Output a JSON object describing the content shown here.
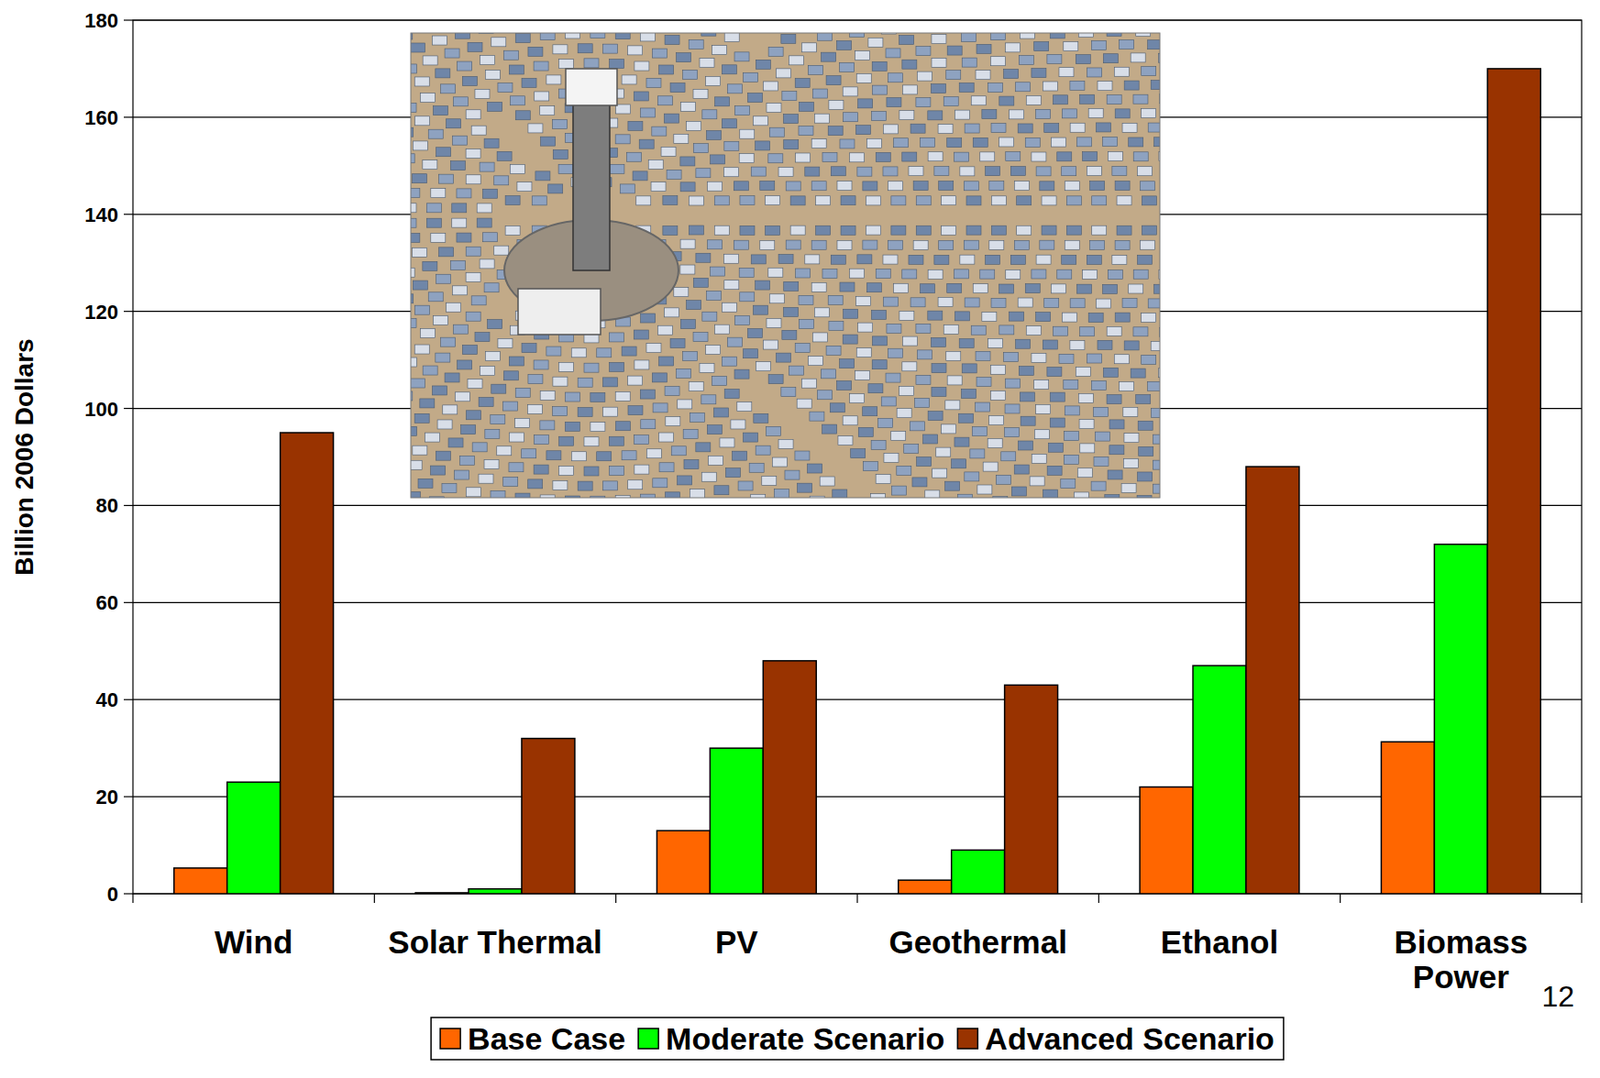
{
  "chart_data": {
    "type": "bar",
    "y_label": "Billion 2006 Dollars",
    "categories": [
      "Wind",
      "Solar Thermal",
      "PV",
      "Geothermal",
      "Ethanol",
      "Biomass Power"
    ],
    "series": [
      {
        "name": "Base Case",
        "color": "#ff6600",
        "values": [
          5.3,
          0.2,
          13,
          2.8,
          22,
          31.3
        ]
      },
      {
        "name": "Moderate Scenario",
        "color": "#00ff00",
        "values": [
          23,
          1,
          30,
          9,
          47,
          72
        ]
      },
      {
        "name": "Advanced Scenario",
        "color": "#993300",
        "values": [
          95,
          32,
          48,
          43,
          88,
          170
        ]
      }
    ],
    "ylim": [
      0,
      180
    ],
    "yticks": [
      0,
      20,
      40,
      60,
      80,
      100,
      120,
      140,
      160,
      180
    ],
    "grid": true,
    "legend": "bottom",
    "annotations": [
      "12"
    ]
  }
}
